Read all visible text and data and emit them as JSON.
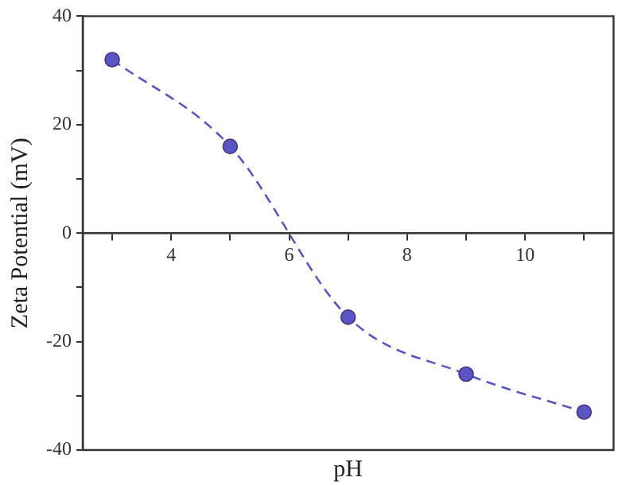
{
  "chart_data": {
    "type": "line",
    "xlabel": "pH",
    "ylabel": "Zeta Potential (mV)",
    "x": [
      3,
      5,
      7,
      9,
      11
    ],
    "series": [
      {
        "color": "#5a55c4",
        "values": [
          32,
          16,
          -15.5,
          -26,
          -33
        ]
      }
    ],
    "xlim": [
      2.5,
      11.5
    ],
    "ylim": [
      -40,
      40
    ],
    "xticks": [
      {
        "value": 3,
        "label": null
      },
      4,
      {
        "value": 5,
        "label": null
      },
      6,
      {
        "value": 7,
        "label": null
      },
      8,
      {
        "value": 9,
        "label": null
      },
      10,
      {
        "value": 11,
        "label": null
      }
    ],
    "yticks": [
      -40,
      {
        "value": -30,
        "label": null
      },
      -20,
      {
        "value": -10,
        "label": null
      },
      0,
      {
        "value": 10,
        "label": null
      },
      20,
      {
        "value": 30,
        "label": null
      },
      40
    ],
    "grid": false,
    "legend": false,
    "marker": "circle",
    "line_style": "dashed"
  }
}
